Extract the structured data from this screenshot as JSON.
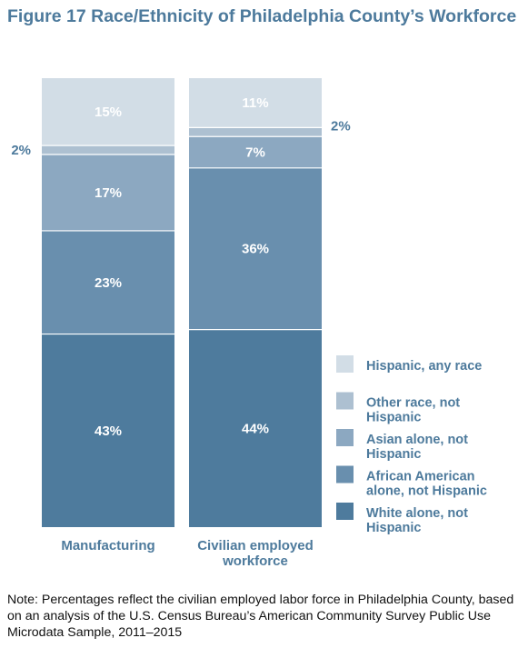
{
  "title": "Figure 17 Race/Ethnicity of Philadelphia County’s Workforce",
  "note": "Note: Percentages reflect the civilian employed labor force in Philadelphia County, based on an analysis of the U.S. Census Bureau’s American Community Survey Public Use Microdata Sample, 2011–2015",
  "chart_data": {
    "type": "bar",
    "stacked": true,
    "unit": "%",
    "categories": [
      [
        "Manufacturing"
      ],
      [
        "Civilian employed",
        "workforce"
      ]
    ],
    "series": [
      {
        "name": [
          "White alone, not",
          "Hispanic"
        ],
        "color": "#4e7b9d",
        "values": [
          43,
          44
        ],
        "labels": [
          "43%",
          "44%"
        ]
      },
      {
        "name": [
          "African American",
          "alone, not Hispanic"
        ],
        "color": "#698fae",
        "values": [
          23,
          36
        ],
        "labels": [
          "23%",
          "36%"
        ]
      },
      {
        "name": [
          "Asian alone, not",
          "Hispanic"
        ],
        "color": "#8ca8c1",
        "values": [
          17,
          7
        ],
        "labels": [
          "17%",
          "7%"
        ]
      },
      {
        "name": [
          "Other race, not",
          "Hispanic"
        ],
        "color": "#adc0d1",
        "values": [
          2,
          2
        ],
        "labels": [
          "2%",
          "2%"
        ]
      },
      {
        "name": [
          "Hispanic, any race"
        ],
        "color": "#d2dde6",
        "values": [
          15,
          11
        ],
        "labels": [
          "15%",
          "11%"
        ]
      }
    ],
    "legend_position": "right",
    "legend_order": "top-to-bottom reverse of stack",
    "grid": false
  }
}
